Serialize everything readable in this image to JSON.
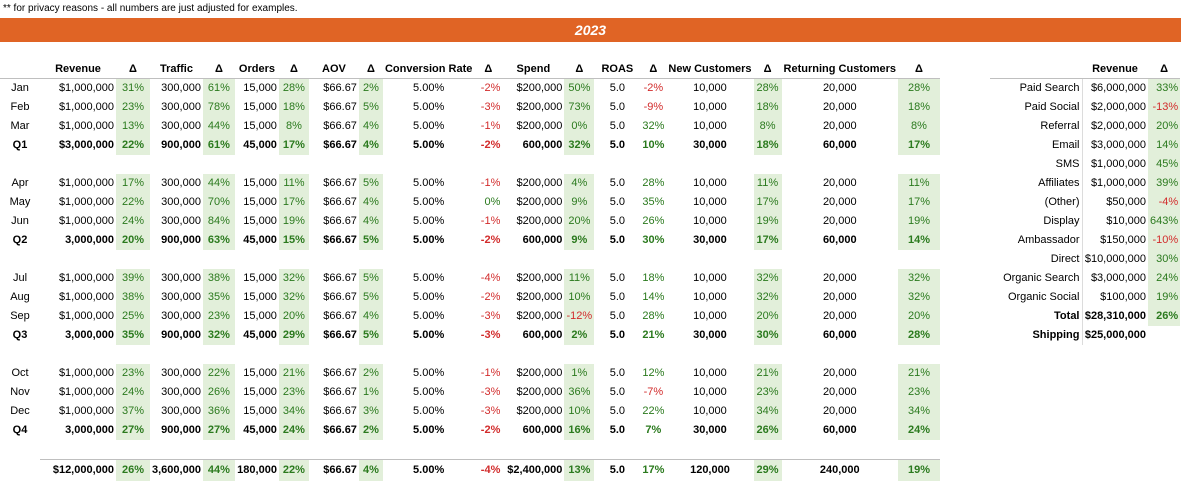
{
  "note": "** for privacy reasons - all numbers are just adjusted for examples.",
  "year": "2023",
  "delta_symbol": "Δ",
  "columns": [
    "Revenue",
    "Traffic",
    "Orders",
    "AOV",
    "Conversion Rate",
    "Spend",
    "ROAS",
    "New Customers",
    "Returning Customers"
  ],
  "rows": [
    {
      "label": "Jan",
      "type": "month",
      "cells": [
        "$1,000,000",
        "31%",
        "300,000",
        "61%",
        "15,000",
        "28%",
        "$66.67",
        "2%",
        "5.00%",
        "-2%",
        "$200,000",
        "50%",
        "5.0",
        "-2%",
        "10,000",
        "28%",
        "20,000",
        "28%"
      ]
    },
    {
      "label": "Feb",
      "type": "month",
      "cells": [
        "$1,000,000",
        "23%",
        "300,000",
        "78%",
        "15,000",
        "18%",
        "$66.67",
        "5%",
        "5.00%",
        "-3%",
        "$200,000",
        "73%",
        "5.0",
        "-9%",
        "10,000",
        "18%",
        "20,000",
        "18%"
      ]
    },
    {
      "label": "Mar",
      "type": "month",
      "cells": [
        "$1,000,000",
        "13%",
        "300,000",
        "44%",
        "15,000",
        "8%",
        "$66.67",
        "4%",
        "5.00%",
        "-1%",
        "$200,000",
        "0%",
        "5.0",
        "32%",
        "10,000",
        "8%",
        "20,000",
        "8%"
      ]
    },
    {
      "label": "Q1",
      "type": "quarter",
      "cells": [
        "$3,000,000",
        "22%",
        "900,000",
        "61%",
        "45,000",
        "17%",
        "$66.67",
        "4%",
        "5.00%",
        "-2%",
        "600,000",
        "32%",
        "5.0",
        "10%",
        "30,000",
        "18%",
        "60,000",
        "17%"
      ]
    },
    {
      "label": "Apr",
      "type": "month",
      "cells": [
        "$1,000,000",
        "17%",
        "300,000",
        "44%",
        "15,000",
        "11%",
        "$66.67",
        "5%",
        "5.00%",
        "-1%",
        "$200,000",
        "4%",
        "5.0",
        "28%",
        "10,000",
        "11%",
        "20,000",
        "11%"
      ]
    },
    {
      "label": "May",
      "type": "month",
      "cells": [
        "$1,000,000",
        "22%",
        "300,000",
        "70%",
        "15,000",
        "17%",
        "$66.67",
        "4%",
        "5.00%",
        "0%",
        "$200,000",
        "9%",
        "5.0",
        "35%",
        "10,000",
        "17%",
        "20,000",
        "17%"
      ]
    },
    {
      "label": "Jun",
      "type": "month",
      "cells": [
        "$1,000,000",
        "24%",
        "300,000",
        "84%",
        "15,000",
        "19%",
        "$66.67",
        "4%",
        "5.00%",
        "-1%",
        "$200,000",
        "20%",
        "5.0",
        "26%",
        "10,000",
        "19%",
        "20,000",
        "19%"
      ]
    },
    {
      "label": "Q2",
      "type": "quarter",
      "cells": [
        "3,000,000",
        "20%",
        "900,000",
        "63%",
        "45,000",
        "15%",
        "$66.67",
        "5%",
        "5.00%",
        "-2%",
        "600,000",
        "9%",
        "5.0",
        "30%",
        "30,000",
        "17%",
        "60,000",
        "14%"
      ]
    },
    {
      "label": "Jul",
      "type": "month",
      "cells": [
        "$1,000,000",
        "39%",
        "300,000",
        "38%",
        "15,000",
        "32%",
        "$66.67",
        "5%",
        "5.00%",
        "-4%",
        "$200,000",
        "11%",
        "5.0",
        "18%",
        "10,000",
        "32%",
        "20,000",
        "32%"
      ]
    },
    {
      "label": "Aug",
      "type": "month",
      "cells": [
        "$1,000,000",
        "38%",
        "300,000",
        "35%",
        "15,000",
        "32%",
        "$66.67",
        "5%",
        "5.00%",
        "-2%",
        "$200,000",
        "10%",
        "5.0",
        "14%",
        "10,000",
        "32%",
        "20,000",
        "32%"
      ]
    },
    {
      "label": "Sep",
      "type": "month",
      "cells": [
        "$1,000,000",
        "25%",
        "300,000",
        "23%",
        "15,000",
        "20%",
        "$66.67",
        "4%",
        "5.00%",
        "-3%",
        "$200,000",
        "-12%",
        "5.0",
        "28%",
        "10,000",
        "20%",
        "20,000",
        "20%"
      ]
    },
    {
      "label": "Q3",
      "type": "quarter",
      "cells": [
        "3,000,000",
        "35%",
        "900,000",
        "32%",
        "45,000",
        "29%",
        "$66.67",
        "5%",
        "5.00%",
        "-3%",
        "600,000",
        "2%",
        "5.0",
        "21%",
        "30,000",
        "30%",
        "60,000",
        "28%"
      ]
    },
    {
      "label": "Oct",
      "type": "month",
      "cells": [
        "$1,000,000",
        "23%",
        "300,000",
        "22%",
        "15,000",
        "21%",
        "$66.67",
        "2%",
        "5.00%",
        "-1%",
        "$200,000",
        "1%",
        "5.0",
        "12%",
        "10,000",
        "21%",
        "20,000",
        "21%"
      ]
    },
    {
      "label": "Nov",
      "type": "month",
      "cells": [
        "$1,000,000",
        "24%",
        "300,000",
        "26%",
        "15,000",
        "23%",
        "$66.67",
        "1%",
        "5.00%",
        "-3%",
        "$200,000",
        "36%",
        "5.0",
        "-7%",
        "10,000",
        "23%",
        "20,000",
        "23%"
      ]
    },
    {
      "label": "Dec",
      "type": "month",
      "cells": [
        "$1,000,000",
        "37%",
        "300,000",
        "36%",
        "15,000",
        "34%",
        "$66.67",
        "3%",
        "5.00%",
        "-3%",
        "$200,000",
        "10%",
        "5.0",
        "22%",
        "10,000",
        "34%",
        "20,000",
        "34%"
      ]
    },
    {
      "label": "Q4",
      "type": "quarter",
      "cells": [
        "3,000,000",
        "27%",
        "900,000",
        "27%",
        "45,000",
        "24%",
        "$66.67",
        "2%",
        "5.00%",
        "-2%",
        "600,000",
        "16%",
        "5.0",
        "7%",
        "30,000",
        "26%",
        "60,000",
        "24%"
      ]
    }
  ],
  "total_row": {
    "label": "",
    "cells": [
      "$12,000,000",
      "26%",
      "3,600,000",
      "44%",
      "180,000",
      "22%",
      "$66.67",
      "4%",
      "5.00%",
      "-4%",
      "$2,400,000",
      "13%",
      "5.0",
      "17%",
      "120,000",
      "29%",
      "240,000",
      "19%"
    ]
  },
  "side_table": {
    "header": "Revenue",
    "rows": [
      {
        "label": "Paid Search",
        "value": "$6,000,000",
        "delta": "33%"
      },
      {
        "label": "Paid Social",
        "value": "$2,000,000",
        "delta": "-13%"
      },
      {
        "label": "Referral",
        "value": "$2,000,000",
        "delta": "20%"
      },
      {
        "label": "Email",
        "value": "$3,000,000",
        "delta": "14%"
      },
      {
        "label": "SMS",
        "value": "$1,000,000",
        "delta": "45%"
      },
      {
        "label": "Affiliates",
        "value": "$1,000,000",
        "delta": "39%"
      },
      {
        "label": "(Other)",
        "value": "$50,000",
        "delta": "-4%"
      },
      {
        "label": "Display",
        "value": "$10,000",
        "delta": "643%"
      },
      {
        "label": "Ambassador",
        "value": "$150,000",
        "delta": "-10%"
      },
      {
        "label": "Direct",
        "value": "$10,000,000",
        "delta": "30%"
      },
      {
        "label": "Organic Search",
        "value": "$3,000,000",
        "delta": "24%"
      },
      {
        "label": "Organic Social",
        "value": "$100,000",
        "delta": "19%"
      },
      {
        "label": "Total",
        "value": "$28,310,000",
        "delta": "26%"
      },
      {
        "label": "Shipping",
        "value": "$25,000,000",
        "delta": ""
      }
    ]
  },
  "colors": {
    "header_bar": "#e06425",
    "delta_bg": "#e2efda",
    "positive": "#2b7a1e",
    "negative": "#d22c2c"
  }
}
